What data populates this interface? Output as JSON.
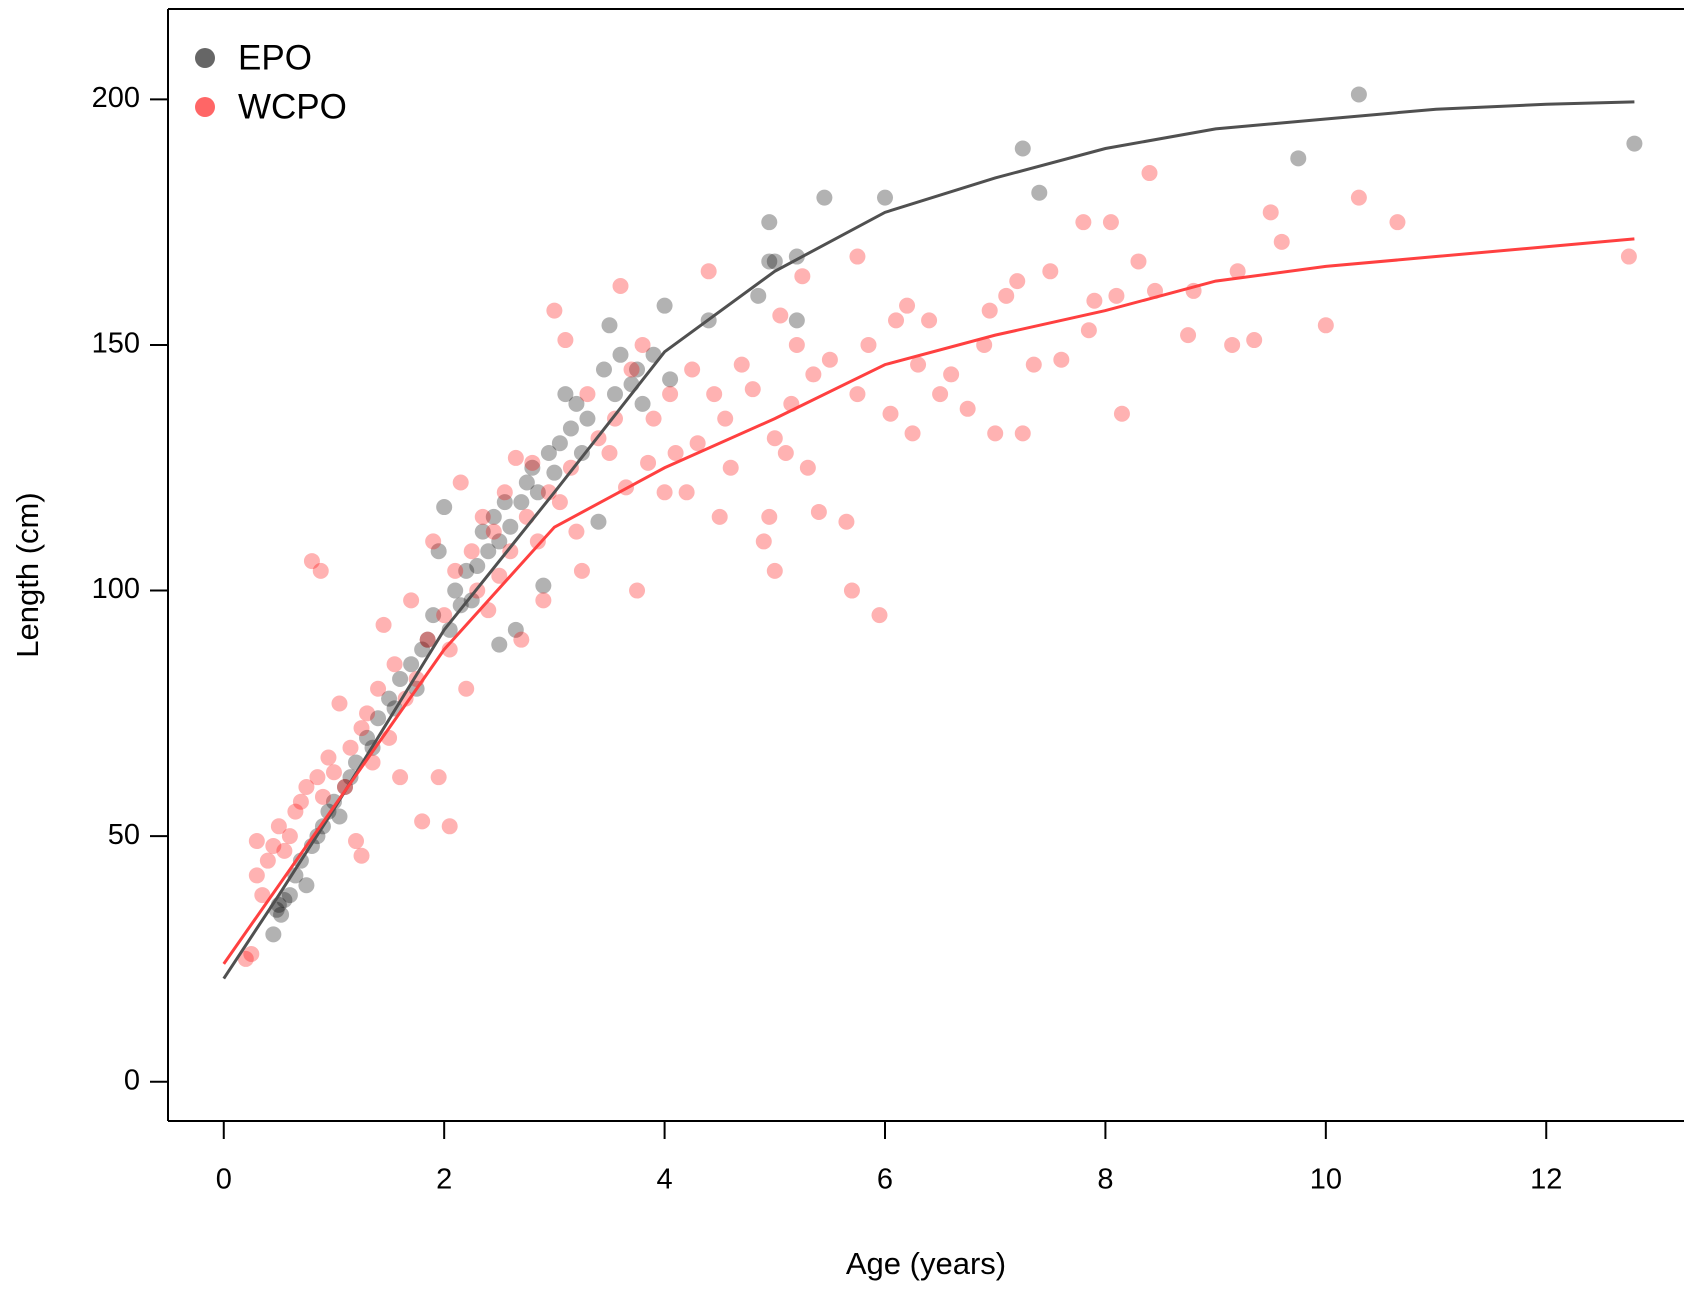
{
  "chart_data": {
    "type": "scatter",
    "x_label": "Age (years)",
    "y_label": "Length (cm)",
    "xlim": [
      -0.506,
      13.25
    ],
    "ylim": [
      -8,
      218.4
    ],
    "xticks": [
      0,
      2,
      4,
      6,
      8,
      10,
      12
    ],
    "yticks": [
      0,
      50,
      100,
      150,
      200
    ],
    "legend": "top-left",
    "point_opacity": 0.3,
    "series": [
      {
        "name": "EPO",
        "color": "#000000",
        "x": [
          0.45,
          0.5,
          0.52,
          0.55,
          0.48,
          0.6,
          0.65,
          0.7,
          0.75,
          0.8,
          0.85,
          0.9,
          0.95,
          1.0,
          1.05,
          1.1,
          1.15,
          1.2,
          1.3,
          1.35,
          1.4,
          1.5,
          1.55,
          1.6,
          1.7,
          1.75,
          1.8,
          1.85,
          1.9,
          1.95,
          2.0,
          2.05,
          2.1,
          2.15,
          2.2,
          2.25,
          2.3,
          2.35,
          2.4,
          2.45,
          2.5,
          2.5,
          2.55,
          2.6,
          2.65,
          2.7,
          2.75,
          2.8,
          2.85,
          2.9,
          2.95,
          3.0,
          3.05,
          3.1,
          3.15,
          3.2,
          3.25,
          3.3,
          3.4,
          3.45,
          3.5,
          3.55,
          3.6,
          3.7,
          3.75,
          3.8,
          3.9,
          4.0,
          4.05,
          4.4,
          4.85,
          4.95,
          4.95,
          5.0,
          5.2,
          5.2,
          5.45,
          6.0,
          7.25,
          7.4,
          9.75,
          10.3,
          12.8
        ],
        "values": [
          30,
          36,
          34,
          37,
          35,
          38,
          42,
          45,
          40,
          48,
          50,
          52,
          55,
          57,
          54,
          60,
          62,
          65,
          70,
          68,
          74,
          78,
          76,
          82,
          85,
          80,
          88,
          90,
          95,
          108,
          117,
          92,
          100,
          97,
          104,
          98,
          105,
          112,
          108,
          115,
          110,
          89,
          118,
          113,
          92,
          118,
          122,
          125,
          120,
          101,
          128,
          124,
          130,
          140,
          133,
          138,
          128,
          135,
          114,
          145,
          154,
          140,
          148,
          142,
          145,
          138,
          148,
          158,
          143,
          155,
          160,
          167,
          175,
          167,
          168,
          155,
          180,
          180,
          190,
          181,
          188,
          201,
          191
        ]
      },
      {
        "name": "WCPO",
        "color": "#ff0000",
        "x": [
          0.2,
          0.25,
          0.3,
          0.3,
          0.35,
          0.4,
          0.45,
          0.5,
          0.55,
          0.6,
          0.65,
          0.7,
          0.75,
          0.8,
          0.85,
          0.88,
          0.9,
          0.95,
          1.0,
          1.05,
          1.1,
          1.15,
          1.2,
          1.25,
          1.25,
          1.3,
          1.35,
          1.4,
          1.45,
          1.5,
          1.55,
          1.6,
          1.65,
          1.7,
          1.75,
          1.8,
          1.85,
          1.9,
          1.95,
          2.0,
          2.05,
          2.05,
          2.1,
          2.15,
          2.2,
          2.25,
          2.3,
          2.35,
          2.4,
          2.45,
          2.5,
          2.55,
          2.6,
          2.65,
          2.7,
          2.75,
          2.8,
          2.85,
          2.9,
          2.95,
          3.0,
          3.05,
          3.1,
          3.15,
          3.2,
          3.25,
          3.3,
          3.4,
          3.5,
          3.55,
          3.6,
          3.65,
          3.7,
          3.75,
          3.8,
          3.85,
          3.9,
          4.0,
          4.05,
          4.1,
          4.2,
          4.25,
          4.3,
          4.4,
          4.45,
          4.5,
          4.55,
          4.6,
          4.7,
          4.8,
          4.9,
          4.95,
          5.0,
          5.0,
          5.05,
          5.1,
          5.15,
          5.2,
          5.25,
          5.3,
          5.35,
          5.4,
          5.5,
          5.65,
          5.7,
          5.75,
          5.75,
          5.85,
          5.95,
          6.05,
          6.1,
          6.2,
          6.25,
          6.3,
          6.4,
          6.5,
          6.6,
          6.75,
          6.9,
          6.95,
          7.0,
          7.1,
          7.2,
          7.25,
          7.35,
          7.5,
          7.6,
          7.8,
          7.85,
          7.9,
          8.05,
          8.1,
          8.15,
          8.3,
          8.4,
          8.45,
          8.75,
          8.8,
          9.15,
          9.2,
          9.35,
          9.5,
          9.6,
          10.0,
          10.3,
          10.65,
          12.75
        ],
        "values": [
          25,
          26,
          49,
          42,
          38,
          45,
          48,
          52,
          47,
          50,
          55,
          57,
          60,
          106,
          62,
          104,
          58,
          66,
          63,
          77,
          60,
          68,
          49,
          46,
          72,
          75,
          65,
          80,
          93,
          70,
          85,
          62,
          78,
          98,
          82,
          53,
          90,
          110,
          62,
          95,
          52,
          88,
          104,
          122,
          80,
          108,
          100,
          115,
          96,
          112,
          103,
          120,
          108,
          127,
          90,
          115,
          126,
          110,
          98,
          120,
          157,
          118,
          151,
          125,
          112,
          104,
          140,
          131,
          128,
          135,
          162,
          121,
          145,
          100,
          150,
          126,
          135,
          120,
          140,
          128,
          120,
          145,
          130,
          165,
          140,
          115,
          135,
          125,
          146,
          141,
          110,
          115,
          104,
          131,
          156,
          128,
          138,
          150,
          164,
          125,
          144,
          116,
          147,
          114,
          100,
          140,
          168,
          150,
          95,
          136,
          155,
          158,
          132,
          146,
          155,
          140,
          144,
          137,
          150,
          157,
          132,
          160,
          163,
          132,
          146,
          165,
          147,
          175,
          153,
          159,
          175,
          160,
          136,
          167,
          185,
          161,
          152,
          161,
          150,
          165,
          151,
          177,
          171,
          154,
          180,
          175,
          168
        ]
      },
      {
        "type": "line",
        "color": "#505050",
        "x": [
          0,
          0.5,
          1,
          2,
          3,
          4,
          5,
          6,
          7,
          8,
          9,
          10,
          11,
          12,
          12.8
        ],
        "values": [
          21,
          38,
          55.5,
          92,
          120,
          148.6,
          165,
          177,
          184,
          190,
          194,
          196,
          198,
          199,
          199.5
        ]
      },
      {
        "type": "line",
        "color": "#ff4040",
        "x": [
          0,
          0.5,
          1,
          2,
          3,
          4,
          5,
          6,
          7,
          8,
          9,
          10,
          11,
          12,
          12.8
        ],
        "values": [
          24,
          40,
          56,
          88,
          112.9,
          125,
          135,
          146,
          152,
          157,
          163,
          166,
          168,
          170,
          171.6
        ]
      }
    ]
  }
}
